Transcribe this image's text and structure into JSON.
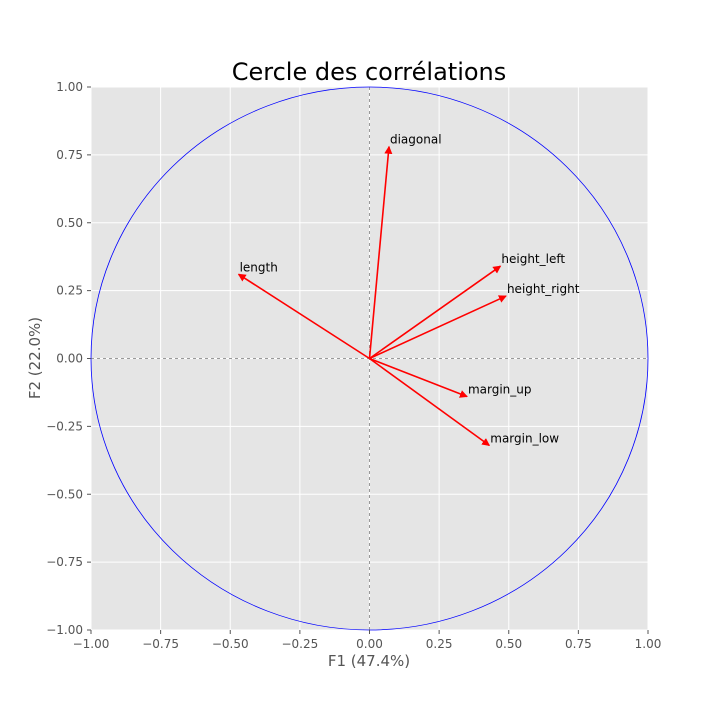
{
  "chart_data": {
    "type": "scatter",
    "title": "Cercle des corrélations",
    "xlabel": "F1 (47.4%)",
    "ylabel": "F2 (22.0%)",
    "xlim": [
      -1.0,
      1.0
    ],
    "ylim": [
      -1.0,
      1.0
    ],
    "xticks": [
      "−1.00",
      "−0.75",
      "−0.50",
      "−0.25",
      "0.00",
      "0.25",
      "0.50",
      "0.75",
      "1.00"
    ],
    "yticks": [
      "−1.00",
      "−0.75",
      "−0.50",
      "−0.25",
      "0.00",
      "0.25",
      "0.50",
      "0.75",
      "1.00"
    ],
    "grid": true,
    "background_color": "#e5e5e5",
    "grid_color": "#ffffff",
    "circle_color": "#0000ff",
    "arrow_color": "#ff0000",
    "variables": [
      {
        "name": "diagonal",
        "x": 0.07,
        "y": 0.78
      },
      {
        "name": "height_left",
        "x": 0.47,
        "y": 0.34
      },
      {
        "name": "height_right",
        "x": 0.49,
        "y": 0.23
      },
      {
        "name": "length",
        "x": -0.47,
        "y": 0.31
      },
      {
        "name": "margin_up",
        "x": 0.35,
        "y": -0.14
      },
      {
        "name": "margin_low",
        "x": 0.43,
        "y": -0.32
      }
    ]
  }
}
